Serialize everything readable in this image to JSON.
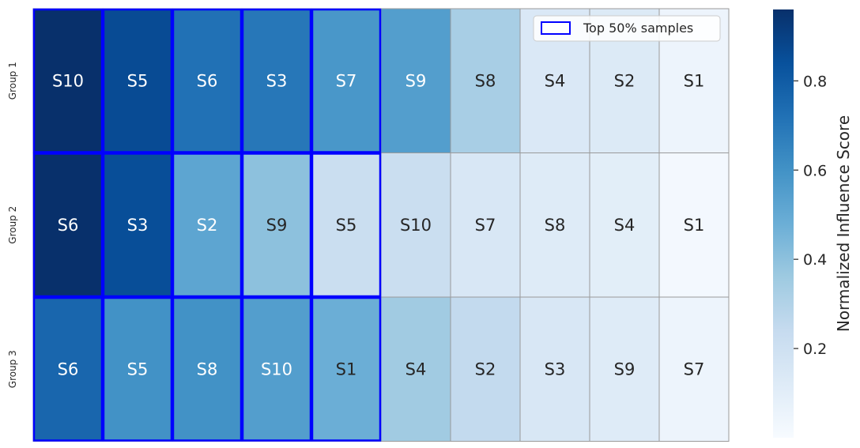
{
  "chart_data": {
    "type": "heatmap",
    "rows": [
      "Group 1",
      "Group 2",
      "Group 3"
    ],
    "cells": [
      [
        {
          "label": "S10",
          "value": 0.96,
          "top50": true
        },
        {
          "label": "S5",
          "value": 0.86,
          "top50": true
        },
        {
          "label": "S6",
          "value": 0.72,
          "top50": true
        },
        {
          "label": "S3",
          "value": 0.7,
          "top50": true
        },
        {
          "label": "S7",
          "value": 0.58,
          "top50": true
        },
        {
          "label": "S9",
          "value": 0.55,
          "top50": false
        },
        {
          "label": "S8",
          "value": 0.33,
          "top50": false
        },
        {
          "label": "S4",
          "value": 0.14,
          "top50": false
        },
        {
          "label": "S2",
          "value": 0.13,
          "top50": false
        },
        {
          "label": "S1",
          "value": 0.05,
          "top50": false
        }
      ],
      [
        {
          "label": "S6",
          "value": 0.96,
          "top50": true
        },
        {
          "label": "S3",
          "value": 0.85,
          "top50": true
        },
        {
          "label": "S2",
          "value": 0.52,
          "top50": true
        },
        {
          "label": "S9",
          "value": 0.4,
          "top50": true
        },
        {
          "label": "S5",
          "value": 0.22,
          "top50": true
        },
        {
          "label": "S10",
          "value": 0.22,
          "top50": false
        },
        {
          "label": "S7",
          "value": 0.15,
          "top50": false
        },
        {
          "label": "S8",
          "value": 0.12,
          "top50": false
        },
        {
          "label": "S4",
          "value": 0.1,
          "top50": false
        },
        {
          "label": "S1",
          "value": 0.02,
          "top50": false
        }
      ],
      [
        {
          "label": "S6",
          "value": 0.76,
          "top50": true
        },
        {
          "label": "S5",
          "value": 0.6,
          "top50": true
        },
        {
          "label": "S8",
          "value": 0.6,
          "top50": true
        },
        {
          "label": "S10",
          "value": 0.55,
          "top50": true
        },
        {
          "label": "S1",
          "value": 0.48,
          "top50": true
        },
        {
          "label": "S4",
          "value": 0.35,
          "top50": false
        },
        {
          "label": "S2",
          "value": 0.25,
          "top50": false
        },
        {
          "label": "S3",
          "value": 0.15,
          "top50": false
        },
        {
          "label": "S9",
          "value": 0.12,
          "top50": false
        },
        {
          "label": "S7",
          "value": 0.05,
          "top50": false
        }
      ]
    ],
    "colorbar": {
      "label": "Normalized Influence Score",
      "min": 0.0,
      "max": 0.96,
      "ticks": [
        0.2,
        0.4,
        0.6,
        0.8
      ],
      "tick_labels": [
        "0.2",
        "0.4",
        "0.6",
        "0.8"
      ],
      "colormap": "Blues"
    },
    "legend": {
      "label": "Top 50% samples",
      "position": "top-right",
      "edge_color": "#0000ff"
    },
    "highlight_color": "#0000ff",
    "grid": true
  }
}
